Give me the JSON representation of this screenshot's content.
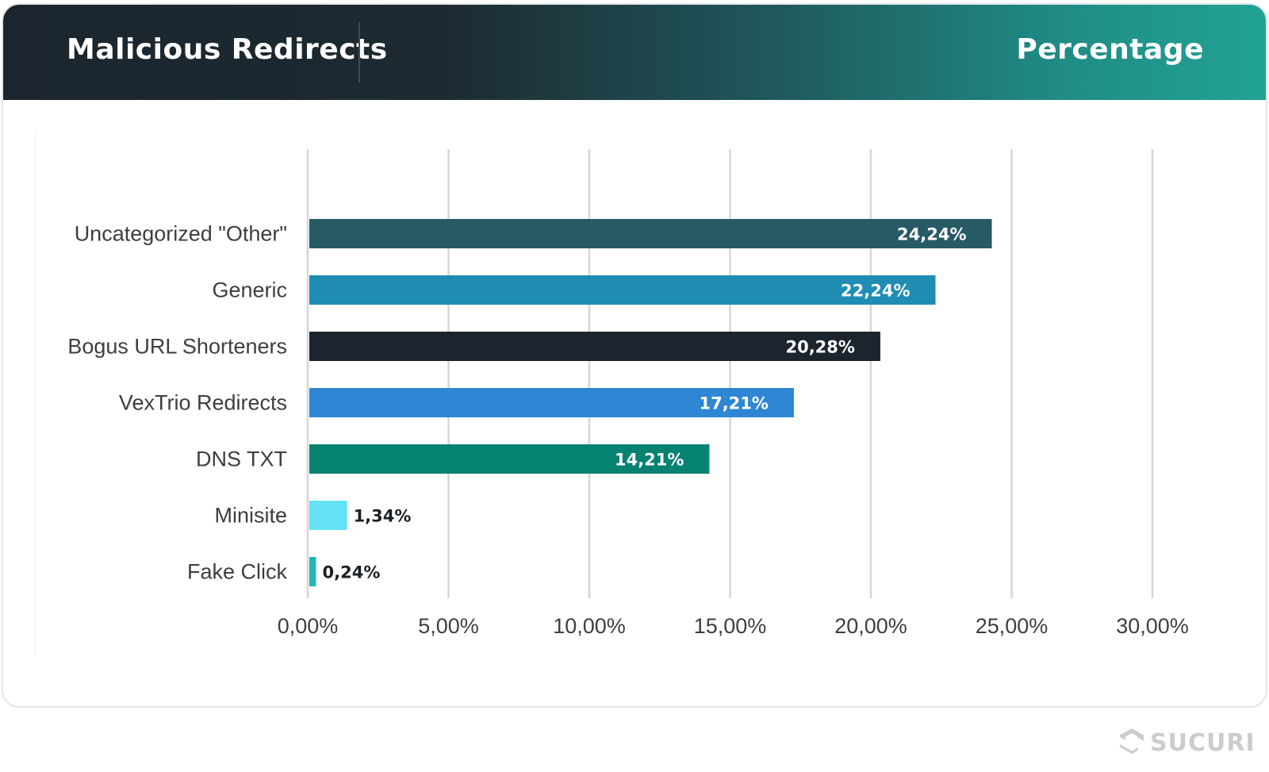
{
  "header": {
    "title": "Malicious Redirects",
    "right_label": "Percentage"
  },
  "brand": {
    "logo_text": "SUCURI",
    "logo_color": "#c9cdd0"
  },
  "chart_data": {
    "type": "bar",
    "orientation": "horizontal",
    "categories": [
      "Uncategorized \"Other\"",
      "Generic",
      "Bogus URL Shorteners",
      "VexTrio Redirects",
      "DNS TXT",
      "Minisite",
      "Fake Click"
    ],
    "values": [
      24.24,
      22.24,
      20.28,
      17.21,
      14.21,
      1.34,
      0.24
    ],
    "value_labels": [
      "24,24%",
      "22,24%",
      "20,28%",
      "17,21%",
      "14,21%",
      "1,34%",
      "0,24%"
    ],
    "colors": [
      "#275a66",
      "#1f8db3",
      "#1c252e",
      "#2f86d4",
      "#068272",
      "#64e2f5",
      "#27b5b5"
    ],
    "xlim": [
      0,
      30
    ],
    "xticks": [
      0,
      5,
      10,
      15,
      20,
      25,
      30
    ],
    "xtick_labels": [
      "0,00%",
      "5,00%",
      "10,00%",
      "15,00%",
      "20,00%",
      "25,00%",
      "30,00%"
    ],
    "grid": "vertical",
    "legend": "none"
  }
}
